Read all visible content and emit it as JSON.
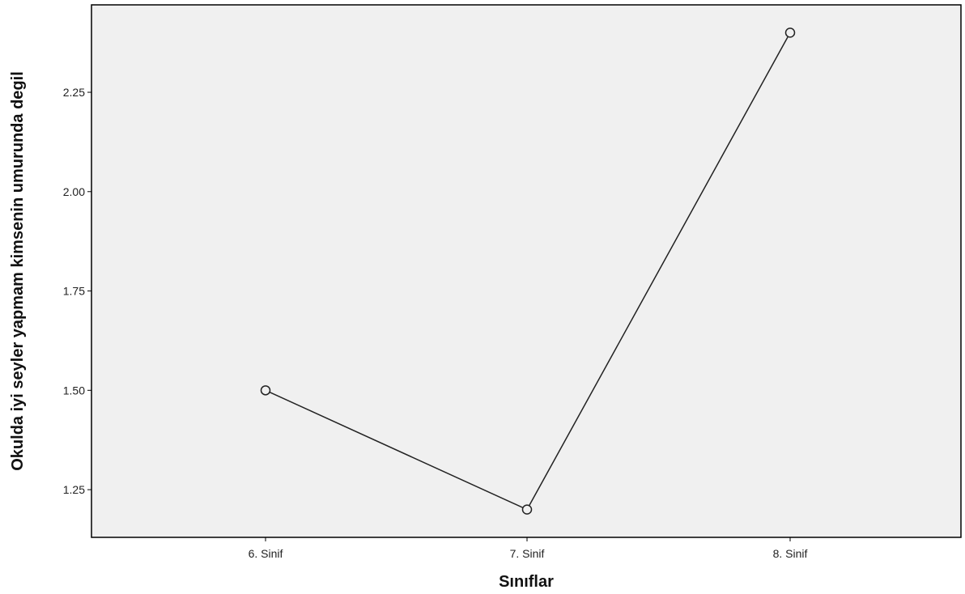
{
  "chart_data": {
    "type": "line",
    "title": "",
    "xlabel": "Sınıflar",
    "ylabel": "Okulda iyi seyler yapmam kimsenin umurunda degil",
    "categories": [
      "6. Sinif",
      "7. Sinif",
      "8. Sinif"
    ],
    "series": [
      {
        "values": [
          1.5,
          1.2,
          2.4
        ]
      }
    ],
    "ylim": [
      1.13,
      2.47
    ],
    "yticks": [
      1.25,
      1.5,
      1.75,
      2.0,
      2.25
    ],
    "ytick_labels": [
      "1.25",
      "1.50",
      "1.75",
      "2.00",
      "2.25"
    ],
    "grid": false,
    "marker": "open-circle",
    "colors": {
      "plot_background": "#f0f0f0",
      "line": "#222222",
      "frame": "#000000"
    }
  }
}
